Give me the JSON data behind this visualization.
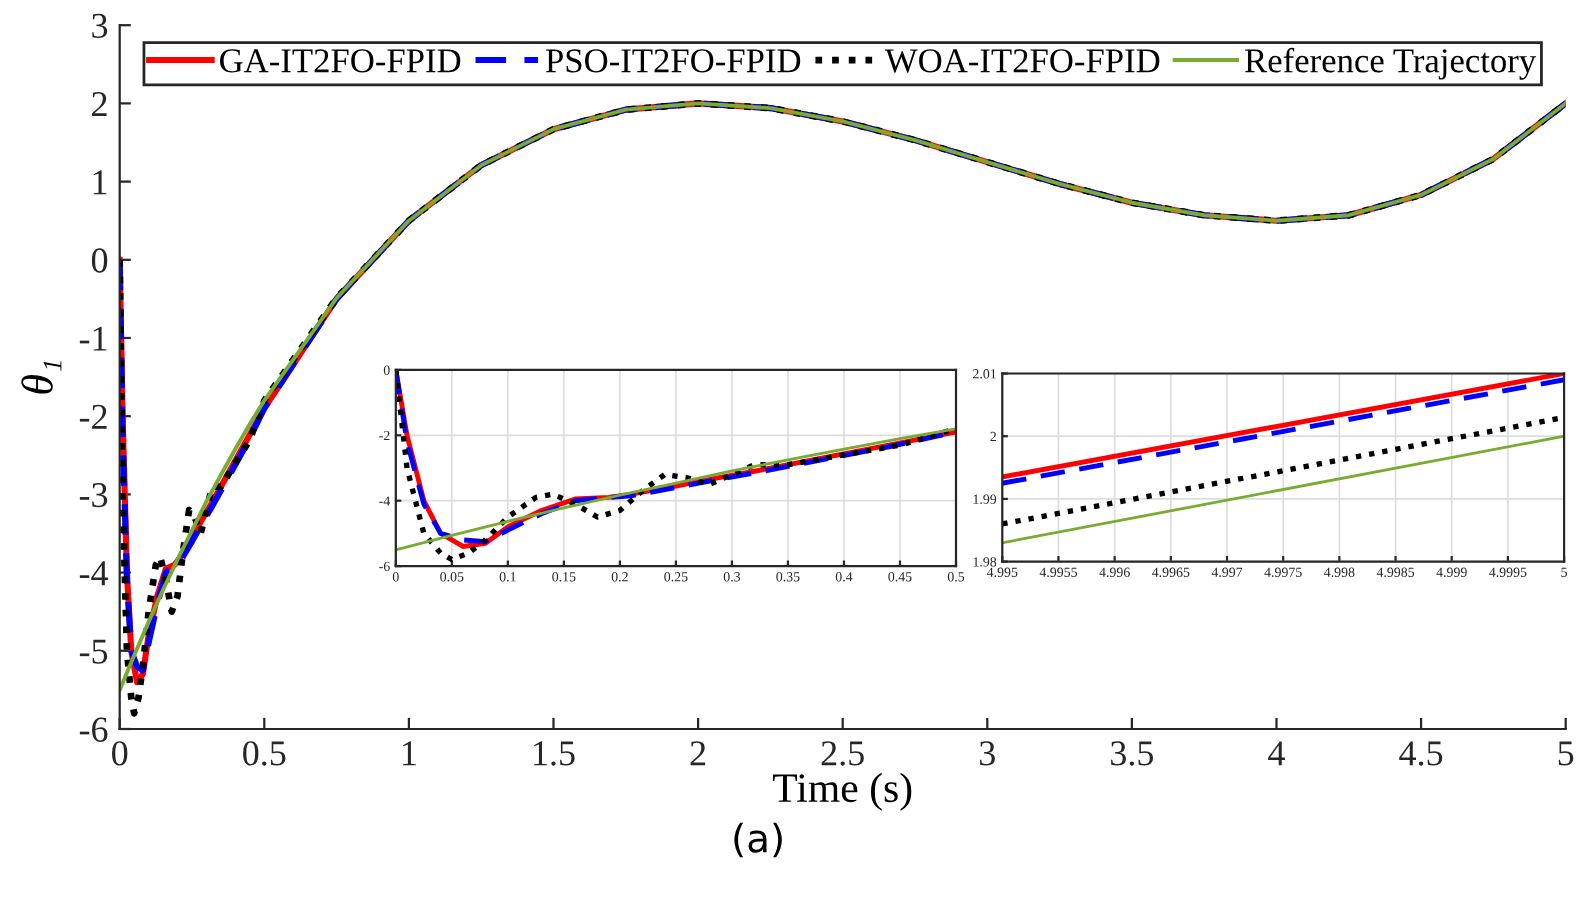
{
  "chart_data": [
    {
      "type": "line",
      "xlabel": "Time (s)",
      "ylabel": "θ₁",
      "xlim": [
        0,
        5
      ],
      "ylim": [
        -6,
        3
      ],
      "xticks": [
        0,
        0.5,
        1,
        1.5,
        2,
        2.5,
        3,
        3.5,
        4,
        4.5,
        5
      ],
      "yticks": [
        -6,
        -5,
        -4,
        -3,
        -2,
        -1,
        0,
        1,
        2,
        3
      ],
      "grid": false,
      "legend": "top",
      "annotations": [
        "(a)"
      ],
      "series": [
        {
          "name": "GA-IT2FO-FPID",
          "color": "#ff0000",
          "line_style": "solid",
          "x": [
            0,
            0.01,
            0.025,
            0.04,
            0.06,
            0.08,
            0.1,
            0.13,
            0.16,
            0.19,
            0.21,
            0.25,
            0.28,
            0.32,
            0.38,
            0.44,
            0.5,
            0.75,
            1,
            1.25,
            1.5,
            1.75,
            2,
            2.25,
            2.5,
            2.75,
            3,
            3.25,
            3.5,
            3.75,
            4,
            4.25,
            4.5,
            4.75,
            5
          ],
          "values": [
            0,
            -2,
            -4,
            -5,
            -5.4,
            -5.3,
            -4.8,
            -4.3,
            -3.95,
            -3.9,
            -3.8,
            -3.55,
            -3.35,
            -3.1,
            -2.7,
            -2.3,
            -1.9,
            -0.5,
            0.5,
            1.21,
            1.67,
            1.92,
            2,
            1.94,
            1.77,
            1.53,
            1.25,
            0.97,
            0.73,
            0.57,
            0.5,
            0.57,
            0.83,
            1.29,
            2
          ]
        },
        {
          "name": "PSO-IT2FO-FPID",
          "color": "#0000ff",
          "line_style": "dashed",
          "x": [
            0,
            0.01,
            0.025,
            0.04,
            0.06,
            0.08,
            0.1,
            0.13,
            0.16,
            0.19,
            0.21,
            0.25,
            0.28,
            0.32,
            0.38,
            0.44,
            0.5,
            0.75,
            1,
            1.25,
            1.5,
            1.75,
            2,
            2.25,
            2.5,
            2.75,
            3,
            3.25,
            3.5,
            3.75,
            4,
            4.25,
            4.5,
            4.75,
            5
          ],
          "values": [
            0,
            -2.2,
            -4.1,
            -5,
            -5.2,
            -5.25,
            -4.9,
            -4.4,
            -4,
            -3.9,
            -3.85,
            -3.6,
            -3.4,
            -3.15,
            -2.75,
            -2.35,
            -1.9,
            -0.5,
            0.5,
            1.21,
            1.67,
            1.92,
            2,
            1.94,
            1.77,
            1.53,
            1.25,
            0.97,
            0.73,
            0.57,
            0.5,
            0.57,
            0.83,
            1.29,
            2
          ]
        },
        {
          "name": "WOA-IT2FO-FPID",
          "color": "#000000",
          "line_style": "dotted",
          "x": [
            0,
            0.01,
            0.025,
            0.04,
            0.05,
            0.065,
            0.08,
            0.1,
            0.125,
            0.14,
            0.16,
            0.18,
            0.2,
            0.22,
            0.24,
            0.26,
            0.28,
            0.3,
            0.32,
            0.35,
            0.4,
            0.45,
            0.5,
            0.75,
            1,
            1.25,
            1.5,
            1.75,
            2,
            2.25,
            2.5,
            2.75,
            3,
            3.25,
            3.5,
            3.75,
            4,
            4.25,
            4.5,
            4.75,
            5
          ],
          "values": [
            0,
            -3,
            -5,
            -5.6,
            -5.8,
            -5.6,
            -5.2,
            -4.5,
            -3.9,
            -3.8,
            -4.1,
            -4.5,
            -4.3,
            -3.7,
            -3.2,
            -3.3,
            -3.5,
            -3.2,
            -2.9,
            -2.9,
            -2.6,
            -2.3,
            -1.8,
            -0.49,
            0.5,
            1.21,
            1.67,
            1.92,
            2,
            1.94,
            1.77,
            1.53,
            1.25,
            0.97,
            0.73,
            0.57,
            0.5,
            0.57,
            0.83,
            1.29,
            2
          ]
        },
        {
          "name": "Reference Trajectory",
          "color": "#77ac30",
          "line_style": "solid",
          "x": [
            0,
            0.05,
            0.1,
            0.15,
            0.2,
            0.25,
            0.3,
            0.35,
            0.4,
            0.45,
            0.5,
            0.75,
            1,
            1.25,
            1.5,
            1.75,
            2,
            2.25,
            2.5,
            2.75,
            3,
            3.25,
            3.5,
            3.75,
            4,
            4.25,
            4.5,
            4.75,
            5
          ],
          "values": [
            -5.5,
            -5.06,
            -4.63,
            -4.22,
            -3.83,
            -3.46,
            -3.09,
            -2.75,
            -2.42,
            -2.1,
            -1.8,
            -0.49,
            0.5,
            1.21,
            1.67,
            1.92,
            2,
            1.94,
            1.77,
            1.53,
            1.25,
            0.97,
            0.73,
            0.57,
            0.5,
            0.57,
            0.83,
            1.29,
            2
          ]
        }
      ]
    },
    {
      "type": "line",
      "xlim": [
        0,
        0.5
      ],
      "ylim": [
        -6,
        0
      ],
      "xticks": [
        0,
        0.05,
        0.1,
        0.15,
        0.2,
        0.25,
        0.3,
        0.35,
        0.4,
        0.45,
        0.5
      ],
      "yticks": [
        -6,
        -4,
        -2,
        0
      ],
      "grid": true,
      "series": [
        {
          "color": "#ff0000",
          "line_style": "solid",
          "x": [
            0,
            0.01,
            0.025,
            0.04,
            0.06,
            0.08,
            0.1,
            0.13,
            0.16,
            0.19,
            0.21,
            0.25,
            0.28,
            0.32,
            0.38,
            0.44,
            0.5
          ],
          "values": [
            0,
            -2,
            -4,
            -5,
            -5.4,
            -5.3,
            -4.8,
            -4.3,
            -3.95,
            -3.9,
            -3.8,
            -3.55,
            -3.35,
            -3.1,
            -2.7,
            -2.3,
            -1.9
          ]
        },
        {
          "color": "#0000ff",
          "line_style": "dashed",
          "x": [
            0,
            0.01,
            0.025,
            0.04,
            0.06,
            0.08,
            0.1,
            0.13,
            0.16,
            0.19,
            0.21,
            0.25,
            0.28,
            0.32,
            0.38,
            0.44,
            0.5
          ],
          "values": [
            0,
            -2.2,
            -4.1,
            -5,
            -5.2,
            -5.25,
            -4.9,
            -4.4,
            -4,
            -3.9,
            -3.85,
            -3.6,
            -3.4,
            -3.15,
            -2.75,
            -2.35,
            -1.9
          ]
        },
        {
          "color": "#000000",
          "line_style": "dotted",
          "x": [
            0,
            0.01,
            0.025,
            0.04,
            0.05,
            0.065,
            0.08,
            0.1,
            0.125,
            0.14,
            0.16,
            0.18,
            0.2,
            0.22,
            0.24,
            0.26,
            0.28,
            0.3,
            0.32,
            0.35,
            0.4,
            0.45,
            0.5
          ],
          "values": [
            0,
            -3,
            -5,
            -5.6,
            -5.8,
            -5.6,
            -5.2,
            -4.5,
            -3.9,
            -3.8,
            -4.1,
            -4.5,
            -4.3,
            -3.7,
            -3.2,
            -3.3,
            -3.5,
            -3.2,
            -2.9,
            -2.9,
            -2.6,
            -2.3,
            -1.8
          ]
        },
        {
          "color": "#77ac30",
          "line_style": "solid",
          "x": [
            0,
            0.05,
            0.1,
            0.15,
            0.2,
            0.25,
            0.3,
            0.35,
            0.4,
            0.45,
            0.5
          ],
          "values": [
            -5.5,
            -5.06,
            -4.63,
            -4.22,
            -3.83,
            -3.46,
            -3.09,
            -2.75,
            -2.42,
            -2.1,
            -1.8
          ]
        }
      ]
    },
    {
      "type": "line",
      "xlim": [
        4.995,
        5
      ],
      "ylim": [
        1.98,
        2.01
      ],
      "xticks": [
        4.995,
        4.9955,
        4.996,
        4.9965,
        4.997,
        4.9975,
        4.998,
        4.9985,
        4.999,
        4.9995,
        5
      ],
      "yticks": [
        1.98,
        1.99,
        2,
        2.01
      ],
      "grid": true,
      "series": [
        {
          "color": "#ff0000",
          "line_style": "solid",
          "x": [
            4.995,
            5
          ],
          "values": [
            1.9935,
            2.01
          ]
        },
        {
          "color": "#0000ff",
          "line_style": "dashed",
          "x": [
            4.995,
            5
          ],
          "values": [
            1.9925,
            2.009
          ]
        },
        {
          "color": "#000000",
          "line_style": "dotted",
          "x": [
            4.995,
            5
          ],
          "values": [
            1.986,
            2.003
          ]
        },
        {
          "color": "#77ac30",
          "line_style": "solid",
          "x": [
            4.995,
            5
          ],
          "values": [
            1.983,
            2.0
          ]
        }
      ]
    }
  ]
}
